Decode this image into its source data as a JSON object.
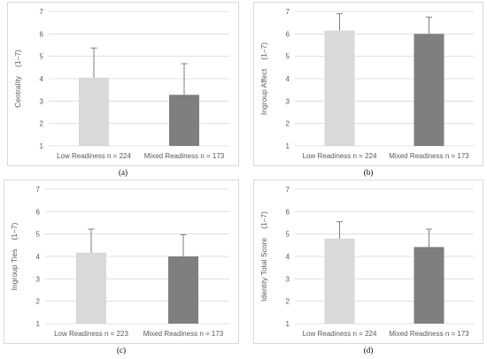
{
  "colors": {
    "light_bar": "#d9d9d9",
    "dark_bar": "#7f7f7f",
    "error_bar": "#7f7f7f",
    "grid": "#d9d9d9",
    "axis_text": "#595959"
  },
  "chart_data": [
    {
      "type": "bar",
      "panel_label": "(a)",
      "ylabel": "Centrality",
      "ylabel_range": "(1–7)",
      "categories": [
        "Low Readiness n = 224",
        "Mixed Readiness n = 173"
      ],
      "values": [
        4.05,
        3.28
      ],
      "error_upper": [
        5.37,
        4.67
      ],
      "ylim": [
        1,
        7
      ],
      "yticks": [
        "1",
        "2",
        "3",
        "4",
        "5",
        "6",
        "7"
      ],
      "grid": true
    },
    {
      "type": "bar",
      "panel_label": "(b)",
      "ylabel": "Ingroup Affect",
      "ylabel_range": "(1–7)",
      "categories": [
        "Low Readiness n = 224",
        "Mixed Readiness n = 173"
      ],
      "values": [
        6.15,
        6.0
      ],
      "error_upper": [
        6.9,
        6.75
      ],
      "ylim": [
        1,
        7
      ],
      "yticks": [
        "1",
        "2",
        "3",
        "4",
        "5",
        "6",
        "7"
      ],
      "grid": true
    },
    {
      "type": "bar",
      "panel_label": "(c)",
      "ylabel": "Ingroup Ties",
      "ylabel_range": "(1–7)",
      "categories": [
        "Low Readiness n = 223",
        "Mixed Readiness n = 173"
      ],
      "values": [
        4.17,
        4.0
      ],
      "error_upper": [
        5.22,
        4.97
      ],
      "ylim": [
        1,
        7
      ],
      "yticks": [
        "1",
        "2",
        "3",
        "4",
        "5",
        "6",
        "7"
      ],
      "grid": true
    },
    {
      "type": "bar",
      "panel_label": "(d)",
      "ylabel": "Identity Total Score",
      "ylabel_range": "(1–7)",
      "categories": [
        "Low Readiness n = 224",
        "Mixed Readiness n = 173"
      ],
      "values": [
        4.8,
        4.42
      ],
      "error_upper": [
        5.55,
        5.22
      ],
      "ylim": [
        1,
        7
      ],
      "yticks": [
        "1",
        "2",
        "3",
        "4",
        "5",
        "6",
        "7"
      ],
      "grid": true
    }
  ]
}
